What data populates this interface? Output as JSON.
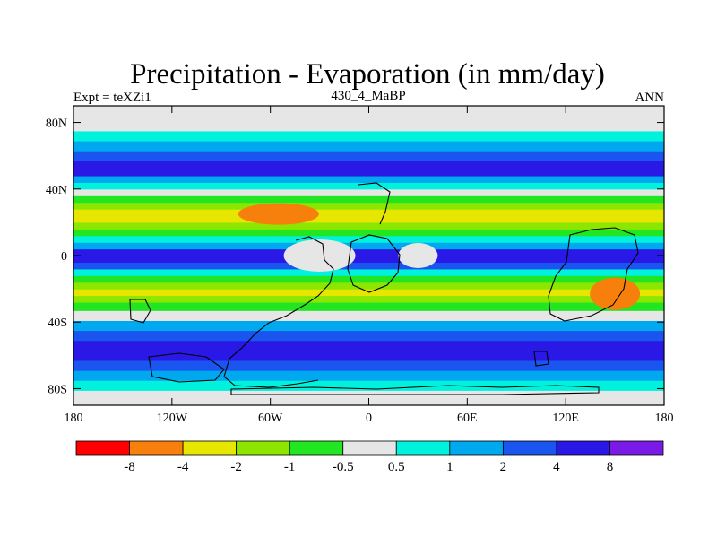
{
  "chart_data": {
    "type": "heatmap",
    "title": "Precipitation - Evaporation (in mm/day)",
    "left_label": "Expt = teXZi1",
    "center_label": "430_4_MaBP",
    "right_label": "ANN",
    "x_ticks": [
      "180",
      "120W",
      "60W",
      "0",
      "60E",
      "120E",
      "180"
    ],
    "x_tick_values": [
      -180,
      -120,
      -60,
      0,
      60,
      120,
      180
    ],
    "y_ticks": [
      "80N",
      "40N",
      "0",
      "40S",
      "80S"
    ],
    "y_tick_values": [
      80,
      40,
      0,
      -40,
      -80
    ],
    "xlim": [
      -180,
      180
    ],
    "ylim": [
      -90,
      90
    ],
    "grid": false,
    "legend": "horizontal colorbar below plot",
    "colorbar": {
      "labels": [
        "-8",
        "-4",
        "-2",
        "-1",
        "-0.5",
        "0.5",
        "1",
        "2",
        "4",
        "8"
      ],
      "colors": [
        "#ff0000",
        "#f77f0c",
        "#e6e600",
        "#8ce600",
        "#21e621",
        "#e6e6e6",
        "#00f2dd",
        "#00a8f0",
        "#1b55f0",
        "#2a18e6",
        "#7a1ae6"
      ]
    },
    "zonal_profile": {
      "lat": [
        -90,
        -84,
        -78,
        -72,
        -66,
        -60,
        -54,
        -48,
        -42,
        -36,
        -30,
        -26,
        -22,
        -18,
        -14,
        -10,
        -6,
        -2,
        2,
        6,
        10,
        14,
        18,
        22,
        26,
        30,
        34,
        38,
        42,
        46,
        50,
        54,
        60,
        66,
        72,
        78,
        84,
        90
      ],
      "level": [
        5,
        5,
        6,
        7,
        8,
        9,
        9,
        8,
        7,
        5,
        4,
        3,
        2,
        3,
        4,
        6,
        8,
        9,
        9,
        7,
        6,
        4,
        3,
        2,
        2,
        3,
        4,
        5,
        6,
        7,
        9,
        9,
        8,
        7,
        6,
        5,
        5,
        5
      ]
    },
    "anomalies": [
      {
        "lon": -55,
        "lat": 25,
        "level": 1,
        "description": "subtropical North Atlantic dry core"
      },
      {
        "lon": 150,
        "lat": -23,
        "level": 1,
        "description": "subtropical South Pacific dry core"
      },
      {
        "lon": -30,
        "lat": 0,
        "level": 5,
        "description": "central continent equatorial region"
      },
      {
        "lon": 30,
        "lat": 0,
        "level": 5,
        "description": "dry interior of equatorial continent"
      }
    ]
  }
}
